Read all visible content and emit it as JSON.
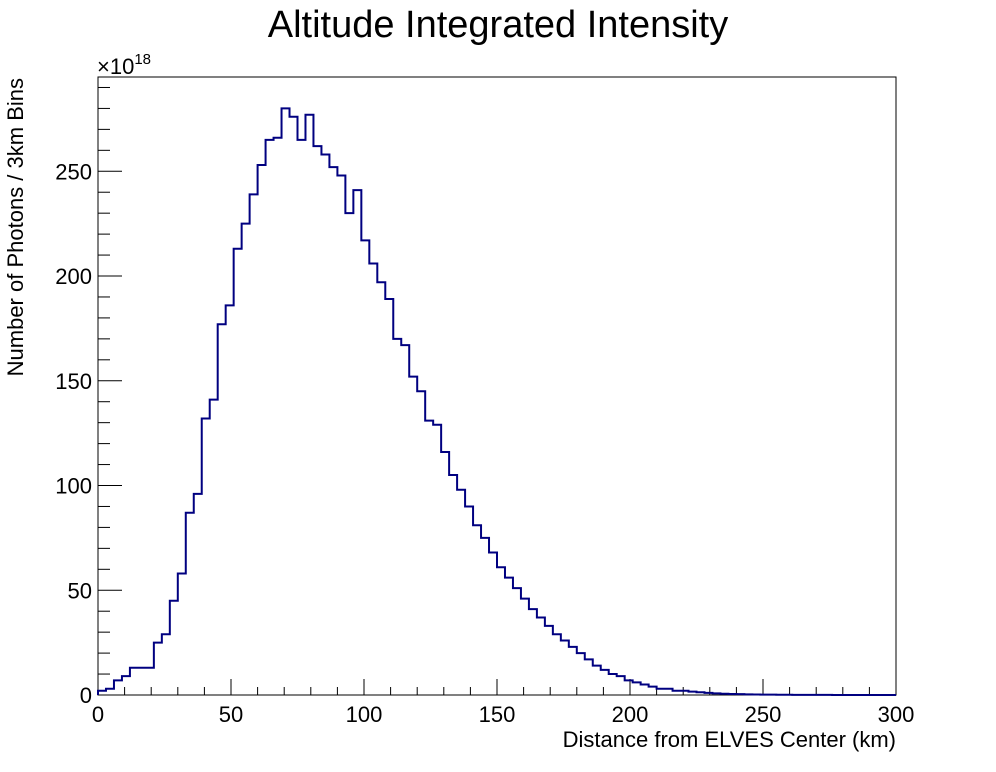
{
  "chart_data": {
    "type": "histogram",
    "title": "Altitude Integrated Intensity",
    "xlabel": "Distance from ELVES Center (km)",
    "ylabel": "Number of Photons / 3km Bins",
    "y_multiplier_label": "×10",
    "y_multiplier_exponent": "18",
    "xlim": [
      0,
      300
    ],
    "ylim": [
      0,
      295
    ],
    "bin_width": 3,
    "x_ticks": [
      0,
      50,
      100,
      150,
      200,
      250,
      300
    ],
    "y_ticks": [
      0,
      50,
      100,
      150,
      200,
      250
    ],
    "line_color": "#000080",
    "values": [
      2,
      3,
      7,
      9,
      13,
      13,
      13,
      25,
      29,
      45,
      58,
      87,
      96,
      132,
      141,
      177,
      186,
      213,
      225,
      239,
      253,
      265,
      266,
      280,
      276,
      265,
      277,
      262,
      258,
      252,
      248,
      230,
      241,
      217,
      206,
      197,
      189,
      170,
      167,
      152,
      145,
      131,
      129,
      116,
      105,
      98,
      90,
      81,
      75,
      68,
      61,
      56,
      51,
      46,
      41,
      37,
      33,
      29,
      26,
      23,
      20,
      17,
      14,
      12,
      10,
      9,
      7,
      6,
      5,
      4,
      3,
      3,
      2,
      2,
      1.6,
      1.3,
      1,
      0.8,
      0.6,
      0.5,
      0.4,
      0.3,
      0.25,
      0.2,
      0.15,
      0.12,
      0.1,
      0.08,
      0.06,
      0.05,
      0.04,
      0.03,
      0.02,
      0.02,
      0.01,
      0.01,
      0.01,
      0,
      0,
      0
    ]
  }
}
